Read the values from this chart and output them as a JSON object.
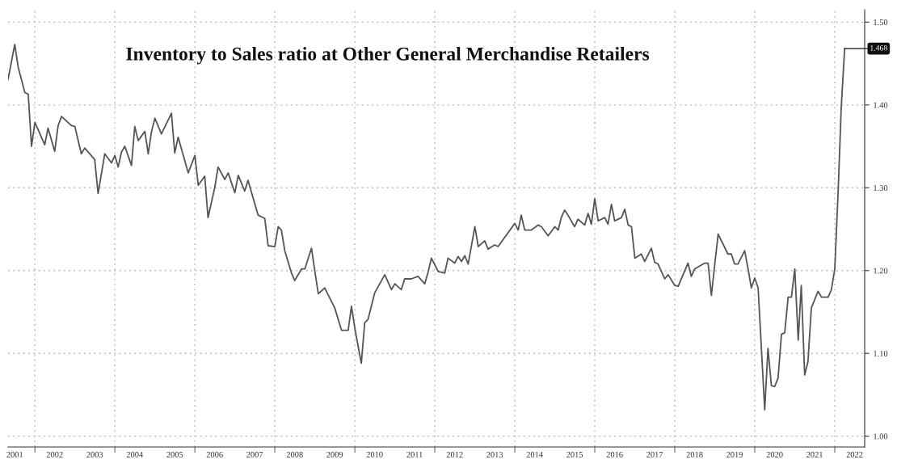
{
  "chart_data": {
    "type": "line",
    "title": "Inventory to Sales ratio at Other General Merchandise Retailers",
    "x": [
      "2001-05",
      "2001-07",
      "2001-08",
      "2001-10",
      "2001-11",
      "2001-12",
      "2002-01",
      "2002-04",
      "2002-05",
      "2002-07",
      "2002-08",
      "2002-09",
      "2002-12",
      "2003-01",
      "2003-03",
      "2003-04",
      "2003-07",
      "2003-08",
      "2003-10",
      "2003-12",
      "2004-01",
      "2004-02",
      "2004-03",
      "2004-04",
      "2004-06",
      "2004-07",
      "2004-08",
      "2004-10",
      "2004-11",
      "2004-12",
      "2005-01",
      "2005-03",
      "2005-06",
      "2005-07",
      "2005-08",
      "2005-11",
      "2006-01",
      "2006-02",
      "2006-04",
      "2006-05",
      "2006-07",
      "2006-08",
      "2006-10",
      "2006-11",
      "2007-01",
      "2007-02",
      "2007-04",
      "2007-05",
      "2007-08",
      "2007-10",
      "2007-11",
      "2008-01",
      "2008-02",
      "2008-03",
      "2008-04",
      "2008-06",
      "2008-07",
      "2008-09",
      "2008-10",
      "2008-12",
      "2009-01",
      "2009-02",
      "2009-04",
      "2009-05",
      "2009-07",
      "2009-09",
      "2009-11",
      "2009-12",
      "2010-01",
      "2010-03",
      "2010-04",
      "2010-05",
      "2010-07",
      "2010-10",
      "2010-12",
      "2011-01",
      "2011-03",
      "2011-04",
      "2011-06",
      "2011-08",
      "2011-10",
      "2011-11",
      "2011-12",
      "2012-02",
      "2012-04",
      "2012-05",
      "2012-07",
      "2012-08",
      "2012-09",
      "2012-10",
      "2012-11",
      "2013-01",
      "2013-02",
      "2013-04",
      "2013-05",
      "2013-07",
      "2013-08",
      "2014-01",
      "2014-02",
      "2014-03",
      "2014-04",
      "2014-06",
      "2014-08",
      "2014-09",
      "2014-11",
      "2015-01",
      "2015-02",
      "2015-03",
      "2015-04",
      "2015-05",
      "2015-07",
      "2015-08",
      "2015-10",
      "2015-11",
      "2015-12",
      "2016-01",
      "2016-02",
      "2016-04",
      "2016-05",
      "2016-06",
      "2016-07",
      "2016-09",
      "2016-10",
      "2016-11",
      "2016-12",
      "2017-01",
      "2017-03",
      "2017-04",
      "2017-06",
      "2017-07",
      "2017-08",
      "2017-10",
      "2017-11",
      "2018-01",
      "2018-02",
      "2018-05",
      "2018-06",
      "2018-07",
      "2018-10",
      "2018-11",
      "2018-12",
      "2019-01",
      "2019-02",
      "2019-05",
      "2019-06",
      "2019-07",
      "2019-08",
      "2019-10",
      "2019-11",
      "2019-12",
      "2020-01",
      "2020-02",
      "2020-04",
      "2020-05",
      "2020-06",
      "2020-07",
      "2020-08",
      "2020-09",
      "2020-10",
      "2020-11",
      "2020-12",
      "2021-01",
      "2021-02",
      "2021-03",
      "2021-04",
      "2021-05",
      "2021-06",
      "2021-08",
      "2021-09",
      "2021-11",
      "2021-12",
      "2022-01",
      "2022-02",
      "2022-03",
      "2022-04"
    ],
    "series": [
      {
        "color": "#555555",
        "values": [
          1.431,
          1.473,
          1.446,
          1.415,
          1.413,
          1.35,
          1.379,
          1.352,
          1.372,
          1.344,
          1.375,
          1.386,
          1.375,
          1.374,
          1.341,
          1.348,
          1.334,
          1.293,
          1.341,
          1.33,
          1.339,
          1.325,
          1.343,
          1.35,
          1.327,
          1.374,
          1.357,
          1.368,
          1.341,
          1.368,
          1.384,
          1.365,
          1.39,
          1.342,
          1.361,
          1.318,
          1.339,
          1.303,
          1.314,
          1.264,
          1.3,
          1.325,
          1.31,
          1.318,
          1.294,
          1.315,
          1.296,
          1.309,
          1.267,
          1.263,
          1.23,
          1.229,
          1.253,
          1.249,
          1.224,
          1.197,
          1.188,
          1.202,
          1.202,
          1.227,
          1.199,
          1.172,
          1.179,
          1.171,
          1.155,
          1.128,
          1.128,
          1.157,
          1.13,
          1.088,
          1.137,
          1.141,
          1.173,
          1.195,
          1.177,
          1.184,
          1.177,
          1.19,
          1.19,
          1.193,
          1.184,
          1.198,
          1.215,
          1.199,
          1.197,
          1.215,
          1.209,
          1.217,
          1.211,
          1.218,
          1.208,
          1.253,
          1.229,
          1.236,
          1.226,
          1.231,
          1.229,
          1.257,
          1.249,
          1.267,
          1.249,
          1.249,
          1.255,
          1.253,
          1.242,
          1.253,
          1.249,
          1.264,
          1.273,
          1.267,
          1.253,
          1.262,
          1.255,
          1.269,
          1.256,
          1.287,
          1.26,
          1.264,
          1.256,
          1.28,
          1.26,
          1.264,
          1.274,
          1.255,
          1.253,
          1.215,
          1.22,
          1.211,
          1.227,
          1.21,
          1.208,
          1.19,
          1.195,
          1.182,
          1.181,
          1.209,
          1.193,
          1.202,
          1.209,
          1.209,
          1.17,
          1.208,
          1.244,
          1.22,
          1.22,
          1.208,
          1.208,
          1.224,
          1.202,
          1.179,
          1.191,
          1.179,
          1.032,
          1.106,
          1.061,
          1.06,
          1.07,
          1.123,
          1.125,
          1.168,
          1.168,
          1.202,
          1.116,
          1.182,
          1.074,
          1.09,
          1.155,
          1.175,
          1.168,
          1.168,
          1.177,
          1.202,
          1.296,
          1.397,
          1.468
        ]
      }
    ],
    "xlim": [
      "2001-05",
      "2022-10"
    ],
    "xticks": [
      {
        "value": "2001-07",
        "label": "2001"
      },
      {
        "value": "2002-07",
        "label": "2002"
      },
      {
        "value": "2003-07",
        "label": "2003"
      },
      {
        "value": "2004-07",
        "label": "2004"
      },
      {
        "value": "2005-07",
        "label": "2005"
      },
      {
        "value": "2006-07",
        "label": "2006"
      },
      {
        "value": "2007-07",
        "label": "2007"
      },
      {
        "value": "2008-07",
        "label": "2008"
      },
      {
        "value": "2009-07",
        "label": "2009"
      },
      {
        "value": "2010-07",
        "label": "2010"
      },
      {
        "value": "2011-07",
        "label": "2011"
      },
      {
        "value": "2012-07",
        "label": "2012"
      },
      {
        "value": "2013-07",
        "label": "2013"
      },
      {
        "value": "2014-07",
        "label": "2014"
      },
      {
        "value": "2015-07",
        "label": "2015"
      },
      {
        "value": "2016-07",
        "label": "2016"
      },
      {
        "value": "2017-07",
        "label": "2017"
      },
      {
        "value": "2018-07",
        "label": "2018"
      },
      {
        "value": "2019-07",
        "label": "2019"
      },
      {
        "value": "2020-07",
        "label": "2020"
      },
      {
        "value": "2021-07",
        "label": "2021"
      },
      {
        "value": "2022-07",
        "label": "2022"
      },
      {
        "value": "2002-01",
        "label": null
      },
      {
        "value": "2004-01",
        "label": null
      },
      {
        "value": "2006-01",
        "label": null
      },
      {
        "value": "2008-01",
        "label": null
      },
      {
        "value": "2010-01",
        "label": null
      },
      {
        "value": "2012-01",
        "label": null
      },
      {
        "value": "2014-01",
        "label": null
      },
      {
        "value": "2016-01",
        "label": null
      },
      {
        "value": "2018-01",
        "label": null
      },
      {
        "value": "2020-01",
        "label": null
      },
      {
        "value": "2022-01",
        "label": null
      }
    ],
    "ylim": [
      0.987,
      1.515
    ],
    "yticks": [
      {
        "value": 1.0,
        "label": "1.00"
      },
      {
        "value": 1.1,
        "label": "1.10"
      },
      {
        "value": 1.2,
        "label": "1.20"
      },
      {
        "value": 1.3,
        "label": "1.30"
      },
      {
        "value": 1.4,
        "label": "1.40"
      },
      {
        "value": 1.5,
        "label": "1.50"
      }
    ],
    "annotations": [
      {
        "text": "1.468",
        "x": "2022-04",
        "y": 1.468
      }
    ],
    "grid": true,
    "marker": "none",
    "line_style": "solid"
  }
}
